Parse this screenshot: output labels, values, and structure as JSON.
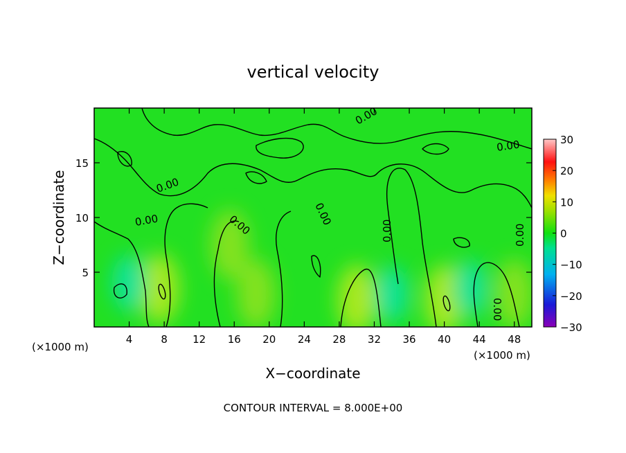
{
  "chart_data": {
    "type": "heatmap",
    "title": "vertical velocity",
    "xlabel": "X−coordinate",
    "ylabel": "Z−coordinate",
    "x_unit_left": "(×1000 m)",
    "x_unit_right": "(×1000 m)",
    "xlim": [
      0,
      50
    ],
    "ylim": [
      0,
      20
    ],
    "x_ticks": [
      4,
      8,
      12,
      16,
      20,
      24,
      28,
      32,
      36,
      40,
      44,
      48
    ],
    "y_ticks": [
      5,
      10,
      15
    ],
    "colorbar": {
      "min": -30,
      "max": 30,
      "ticks": [
        30,
        20,
        10,
        0,
        -10,
        -20,
        -30
      ],
      "tick_labels": [
        "30",
        "20",
        "10",
        "0",
        "−10",
        "−20",
        "−30"
      ]
    },
    "contour_interval_text": "CONTOUR INTERVAL = 8.000E+00",
    "contour_labels": [
      "0.00",
      "0.00",
      "0.00",
      "0.00",
      "0.00",
      "0.00",
      "0.00",
      "0.00",
      "0.00"
    ],
    "updraft_cores": [
      {
        "x": 7.5,
        "z": 3.5,
        "w": 8
      },
      {
        "x": 15.5,
        "z": 7.5,
        "w": 6
      },
      {
        "x": 18.5,
        "z": 3.0,
        "w": 6
      },
      {
        "x": 30.0,
        "z": 2.5,
        "w": 7
      },
      {
        "x": 40.0,
        "z": 2.5,
        "w": 8
      },
      {
        "x": 48.0,
        "z": 3.0,
        "w": 5
      }
    ],
    "downdraft_regions": [
      {
        "x": 4.0,
        "z": 4.0,
        "w": -5
      },
      {
        "x": 34.0,
        "z": 3.0,
        "w": -5
      },
      {
        "x": 43.0,
        "z": 3.5,
        "w": -4
      }
    ]
  }
}
